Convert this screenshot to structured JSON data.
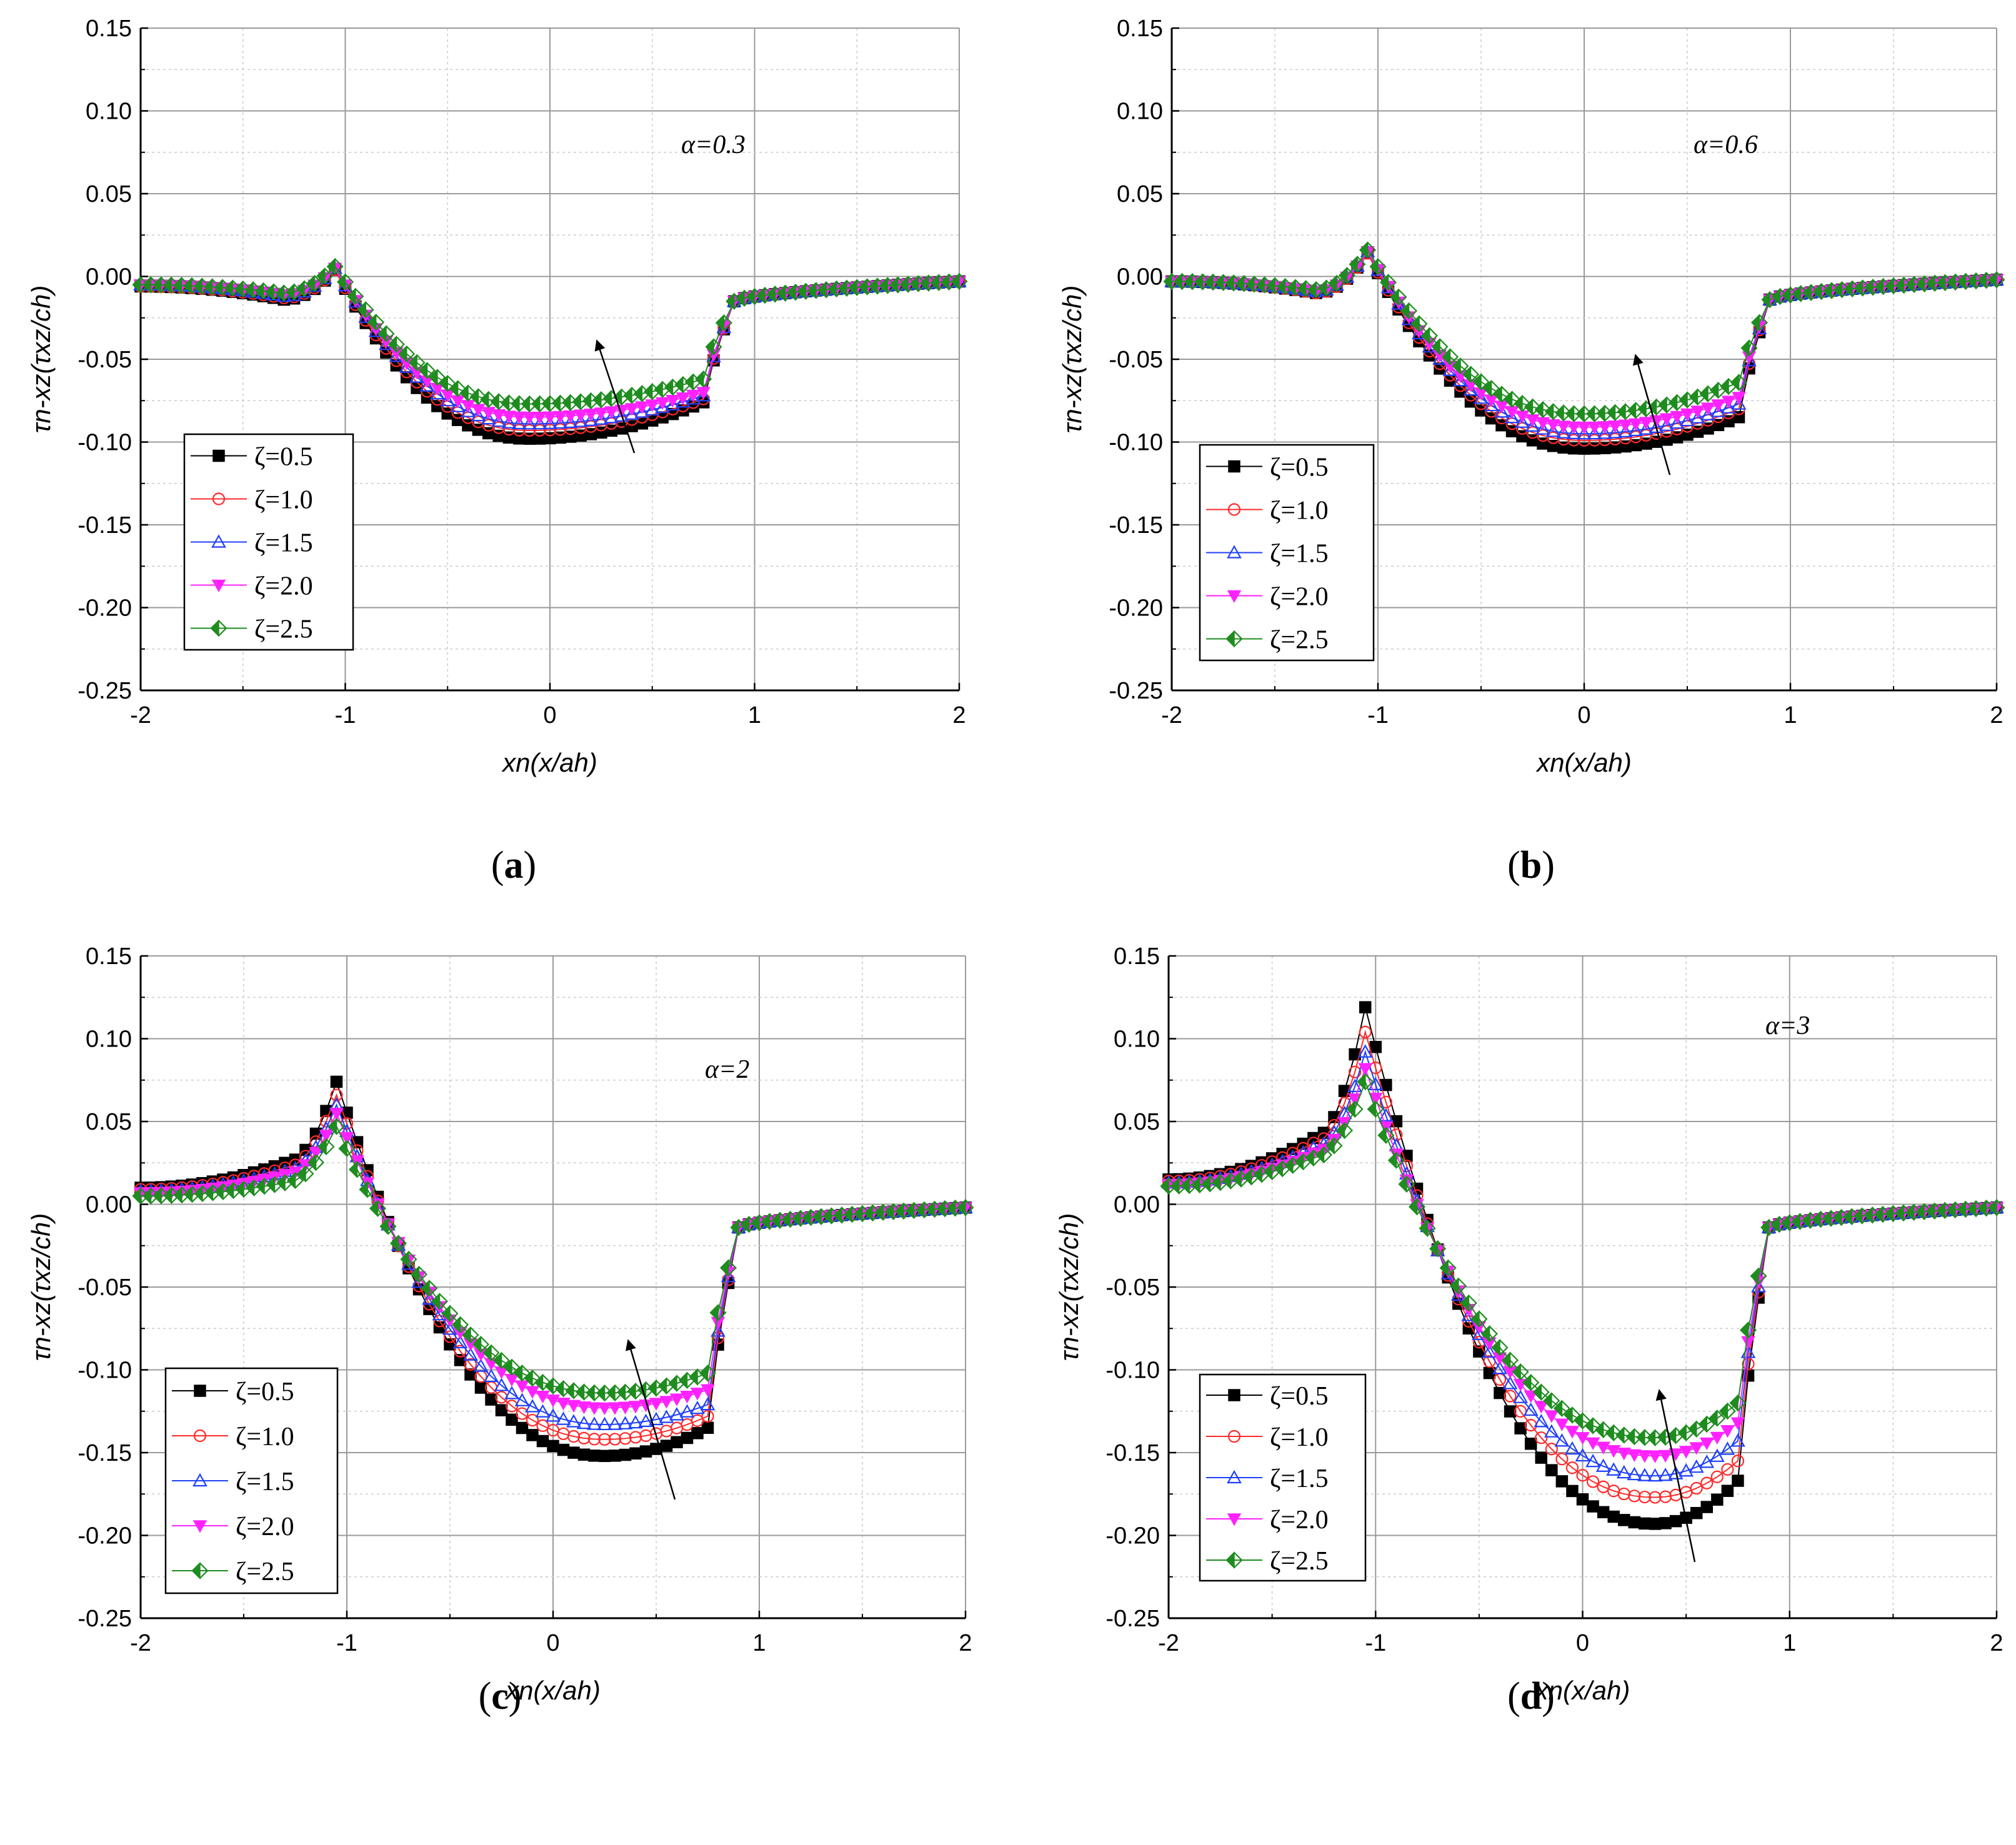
{
  "figure": {
    "marker_step": 0.05,
    "colors": {
      "s1": "#000000",
      "s2": "#ff2a2a",
      "s3": "#1f3fff",
      "s4": "#ff22ff",
      "s5": "#1e8c1e"
    },
    "legend_labels": [
      "ζ=0.5",
      "ζ=1.0",
      "ζ=1.5",
      "ζ=2.0",
      "ζ=2.5"
    ],
    "ylabel": "τn-xz(τxz/ch)",
    "xlabel": "xn(x/ah)"
  },
  "chart_data": [
    {
      "type": "line",
      "panel": "(a)",
      "annotation": "α=0.3",
      "x_range": [
        -2,
        2
      ],
      "ylim": [
        -0.25,
        0.15
      ],
      "xticks": [
        "-2",
        "-1",
        "0",
        "1",
        "2"
      ],
      "yticks": [
        "0.15",
        "0.10",
        "0.05",
        "0.00",
        "-0.05",
        "-0.10",
        "-0.15",
        "-0.20",
        "-0.25"
      ],
      "series": [
        {
          "name": "ζ=0.5",
          "left_level": -0.006,
          "pre_peak": -0.014,
          "peak": 0.004,
          "min": -0.098,
          "x_min": -0.1,
          "right_edge": -0.076,
          "right_level": -0.003
        },
        {
          "name": "ζ=1.0",
          "left_level": -0.006,
          "pre_peak": -0.013,
          "peak": 0.004,
          "min": -0.093,
          "x_min": -0.1,
          "right_edge": -0.074,
          "right_level": -0.003
        },
        {
          "name": "ζ=1.5",
          "left_level": -0.005,
          "pre_peak": -0.012,
          "peak": 0.005,
          "min": -0.089,
          "x_min": -0.1,
          "right_edge": -0.072,
          "right_level": -0.003
        },
        {
          "name": "ζ=2.0",
          "left_level": -0.005,
          "pre_peak": -0.011,
          "peak": 0.005,
          "min": -0.085,
          "x_min": -0.1,
          "right_edge": -0.07,
          "right_level": -0.003
        },
        {
          "name": "ζ=2.5",
          "left_level": -0.005,
          "pre_peak": -0.01,
          "peak": 0.006,
          "min": -0.077,
          "x_min": -0.1,
          "right_edge": -0.062,
          "right_level": -0.003
        }
      ]
    },
    {
      "type": "line",
      "panel": "(b)",
      "annotation": "α=0.6",
      "x_range": [
        -2,
        2
      ],
      "ylim": [
        -0.25,
        0.15
      ],
      "xticks": [
        "-2",
        "-1",
        "0",
        "1",
        "2"
      ],
      "yticks": [
        "0.15",
        "0.10",
        "0.05",
        "0.00",
        "-0.05",
        "-0.10",
        "-0.15",
        "-0.20",
        "-0.25"
      ],
      "series": [
        {
          "name": "ζ=0.5",
          "left_level": -0.003,
          "pre_peak": -0.01,
          "peak": 0.014,
          "min": -0.104,
          "x_min": 0.0,
          "right_edge": -0.085,
          "right_level": -0.002
        },
        {
          "name": "ζ=1.0",
          "left_level": -0.003,
          "pre_peak": -0.01,
          "peak": 0.014,
          "min": -0.099,
          "x_min": 0.0,
          "right_edge": -0.08,
          "right_level": -0.002
        },
        {
          "name": "ζ=1.5",
          "left_level": -0.003,
          "pre_peak": -0.009,
          "peak": 0.015,
          "min": -0.095,
          "x_min": 0.0,
          "right_edge": -0.077,
          "right_level": -0.002
        },
        {
          "name": "ζ=2.0",
          "left_level": -0.003,
          "pre_peak": -0.009,
          "peak": 0.015,
          "min": -0.091,
          "x_min": 0.0,
          "right_edge": -0.073,
          "right_level": -0.002
        },
        {
          "name": "ζ=2.5",
          "left_level": -0.003,
          "pre_peak": -0.008,
          "peak": 0.016,
          "min": -0.083,
          "x_min": 0.0,
          "right_edge": -0.064,
          "right_level": -0.002
        }
      ]
    },
    {
      "type": "line",
      "panel": "(c)",
      "annotation": "α=2",
      "x_range": [
        -2,
        2
      ],
      "ylim": [
        -0.25,
        0.15
      ],
      "xticks": [
        "-2",
        "-1",
        "0",
        "1",
        "2"
      ],
      "yticks": [
        "0.15",
        "0.10",
        "0.05",
        "0.00",
        "-0.05",
        "-0.10",
        "-0.15",
        "-0.20",
        "-0.25"
      ],
      "series": [
        {
          "name": "ζ=0.5",
          "left_level": 0.01,
          "pre_peak": 0.025,
          "peak": 0.074,
          "min": -0.152,
          "x_min": 0.25,
          "right_edge": -0.135,
          "right_level": -0.002
        },
        {
          "name": "ζ=1.0",
          "left_level": 0.009,
          "pre_peak": 0.022,
          "peak": 0.066,
          "min": -0.142,
          "x_min": 0.25,
          "right_edge": -0.128,
          "right_level": -0.002
        },
        {
          "name": "ζ=1.5",
          "left_level": 0.008,
          "pre_peak": 0.02,
          "peak": 0.06,
          "min": -0.133,
          "x_min": 0.25,
          "right_edge": -0.121,
          "right_level": -0.002
        },
        {
          "name": "ζ=2.0",
          "left_level": 0.007,
          "pre_peak": 0.018,
          "peak": 0.055,
          "min": -0.123,
          "x_min": 0.25,
          "right_edge": -0.112,
          "right_level": -0.002
        },
        {
          "name": "ζ=2.5",
          "left_level": 0.005,
          "pre_peak": 0.013,
          "peak": 0.047,
          "min": -0.114,
          "x_min": 0.25,
          "right_edge": -0.102,
          "right_level": -0.002
        }
      ]
    },
    {
      "type": "line",
      "panel": "(d)",
      "annotation": "α=3",
      "x_range": [
        -2,
        2
      ],
      "ylim": [
        -0.25,
        0.15
      ],
      "xticks": [
        "-2",
        "-1",
        "0",
        "1",
        "2"
      ],
      "yticks": [
        "0.15",
        "0.10",
        "0.05",
        "0.00",
        "-0.05",
        "-0.10",
        "-0.15",
        "-0.20",
        "-0.25"
      ],
      "series": [
        {
          "name": "ζ=0.5",
          "left_level": 0.015,
          "pre_peak": 0.04,
          "peak": 0.119,
          "min": -0.193,
          "x_min": 0.35,
          "right_edge": -0.167,
          "right_level": -0.002
        },
        {
          "name": "ζ=1.0",
          "left_level": 0.014,
          "pre_peak": 0.037,
          "peak": 0.104,
          "min": -0.177,
          "x_min": 0.35,
          "right_edge": -0.155,
          "right_level": -0.002
        },
        {
          "name": "ζ=1.5",
          "left_level": 0.013,
          "pre_peak": 0.034,
          "peak": 0.092,
          "min": -0.164,
          "x_min": 0.35,
          "right_edge": -0.143,
          "right_level": -0.002
        },
        {
          "name": "ζ=2.0",
          "left_level": 0.012,
          "pre_peak": 0.031,
          "peak": 0.082,
          "min": -0.152,
          "x_min": 0.35,
          "right_edge": -0.132,
          "right_level": -0.002
        },
        {
          "name": "ζ=2.5",
          "left_level": 0.011,
          "pre_peak": 0.028,
          "peak": 0.074,
          "min": -0.141,
          "x_min": 0.35,
          "right_edge": -0.12,
          "right_level": -0.002
        }
      ]
    }
  ]
}
